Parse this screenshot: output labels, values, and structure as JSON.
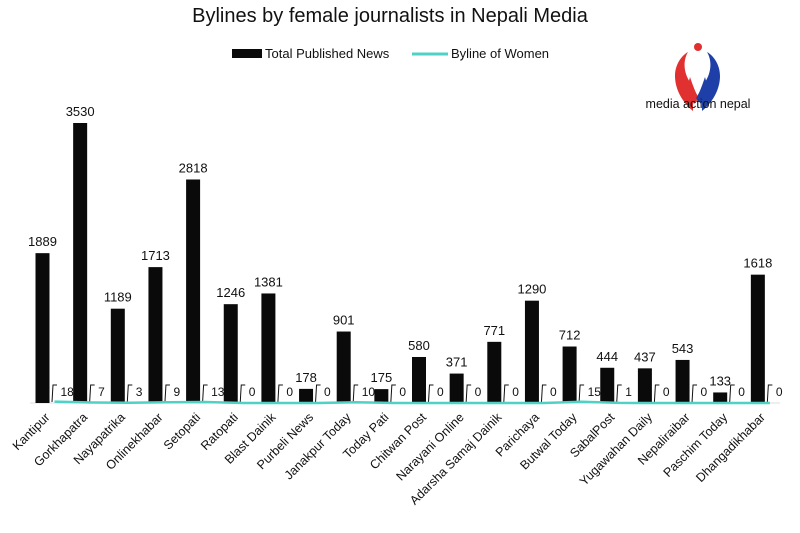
{
  "chart_data": {
    "type": "bar",
    "title": "Bylines by female journalists in Nepali Media",
    "legend": {
      "placement": "top-center"
    },
    "categories": [
      "Kantipur",
      "Gorkhapatra",
      "Nayapatrika",
      "Onlinekhabar",
      "Setopati",
      "Ratopati",
      "Blast Dainik",
      "Purbeli News",
      "Janakpur Today",
      "Today Pati",
      "Chitwan Post",
      "Narayani Online",
      "Adarsha Samaj Dainik",
      "Parichaya",
      "Butwal Today",
      "SabalPost",
      "Yugawahan Daily",
      "Nepaliraibar",
      "Paschim Today",
      "Dhangadikhabar"
    ],
    "series": [
      {
        "name": "Total Published News",
        "type": "bar",
        "color": "#0a0a0a",
        "values": [
          1889,
          3530,
          1189,
          1713,
          2818,
          1246,
          1381,
          178,
          901,
          175,
          580,
          371,
          771,
          1290,
          712,
          444,
          437,
          543,
          133,
          1618
        ]
      },
      {
        "name": "Byline of Women",
        "type": "line",
        "color": "#4fd1c5",
        "values": [
          18,
          7,
          3,
          9,
          13,
          0,
          0,
          0,
          10,
          0,
          0,
          0,
          0,
          0,
          15,
          1,
          0,
          0,
          0,
          0
        ]
      }
    ],
    "ylim": [
      0,
      3700
    ],
    "grid": false,
    "xlabel": "",
    "ylabel": ""
  },
  "logo": {
    "text": "media action nepal",
    "colors": {
      "red": "#e03030",
      "blue": "#1f3fa8"
    }
  }
}
